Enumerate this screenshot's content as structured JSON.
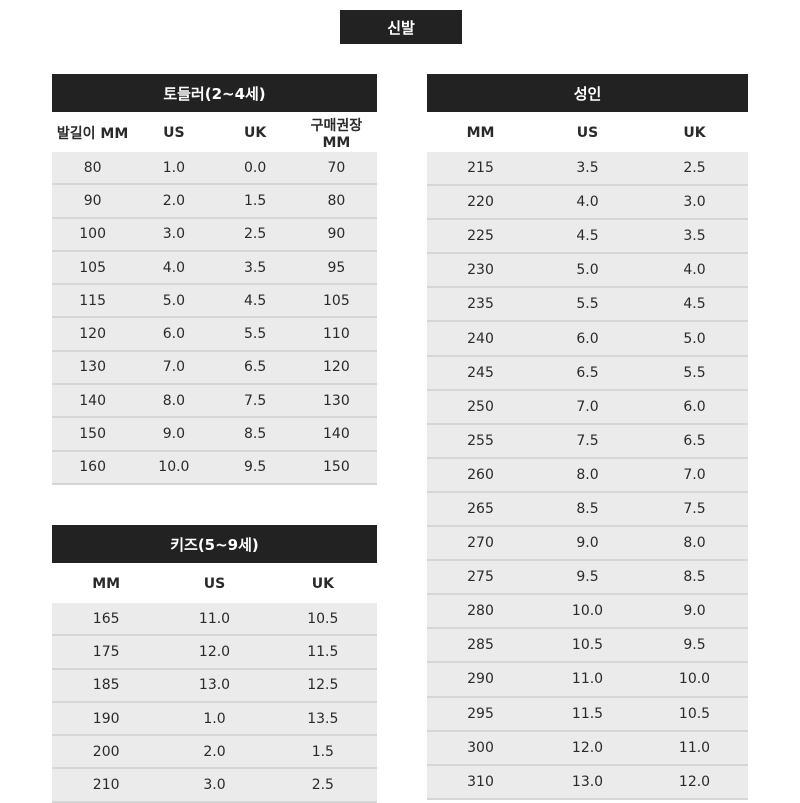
{
  "title": "신발",
  "toddler": {
    "title": "토들러(2~4세)",
    "headers": [
      "발길이 MM",
      "US",
      "UK",
      "구매권장 MM"
    ],
    "rows": [
      [
        "80",
        "1.0",
        "0.0",
        "70"
      ],
      [
        "90",
        "2.0",
        "1.5",
        "80"
      ],
      [
        "100",
        "3.0",
        "2.5",
        "90"
      ],
      [
        "105",
        "4.0",
        "3.5",
        "95"
      ],
      [
        "115",
        "5.0",
        "4.5",
        "105"
      ],
      [
        "120",
        "6.0",
        "5.5",
        "110"
      ],
      [
        "130",
        "7.0",
        "6.5",
        "120"
      ],
      [
        "140",
        "8.0",
        "7.5",
        "130"
      ],
      [
        "150",
        "9.0",
        "8.5",
        "140"
      ],
      [
        "160",
        "10.0",
        "9.5",
        "150"
      ]
    ]
  },
  "kids": {
    "title": "키즈(5~9세)",
    "headers": [
      "MM",
      "US",
      "UK"
    ],
    "rows": [
      [
        "165",
        "11.0",
        "10.5"
      ],
      [
        "175",
        "12.0",
        "11.5"
      ],
      [
        "185",
        "13.0",
        "12.5"
      ],
      [
        "190",
        "1.0",
        "13.5"
      ],
      [
        "200",
        "2.0",
        "1.5"
      ],
      [
        "210",
        "3.0",
        "2.5"
      ]
    ]
  },
  "adult": {
    "title": "성인",
    "headers": [
      "MM",
      "US",
      "UK"
    ],
    "rows": [
      [
        "215",
        "3.5",
        "2.5"
      ],
      [
        "220",
        "4.0",
        "3.0"
      ],
      [
        "225",
        "4.5",
        "3.5"
      ],
      [
        "230",
        "5.0",
        "4.0"
      ],
      [
        "235",
        "5.5",
        "4.5"
      ],
      [
        "240",
        "6.0",
        "5.0"
      ],
      [
        "245",
        "6.5",
        "5.5"
      ],
      [
        "250",
        "7.0",
        "6.0"
      ],
      [
        "255",
        "7.5",
        "6.5"
      ],
      [
        "260",
        "8.0",
        "7.0"
      ],
      [
        "265",
        "8.5",
        "7.5"
      ],
      [
        "270",
        "9.0",
        "8.0"
      ],
      [
        "275",
        "9.5",
        "8.5"
      ],
      [
        "280",
        "10.0",
        "9.0"
      ],
      [
        "285",
        "10.5",
        "9.5"
      ],
      [
        "290",
        "11.0",
        "10.0"
      ],
      [
        "295",
        "11.5",
        "10.5"
      ],
      [
        "300",
        "12.0",
        "11.0"
      ],
      [
        "310",
        "13.0",
        "12.0"
      ]
    ]
  }
}
